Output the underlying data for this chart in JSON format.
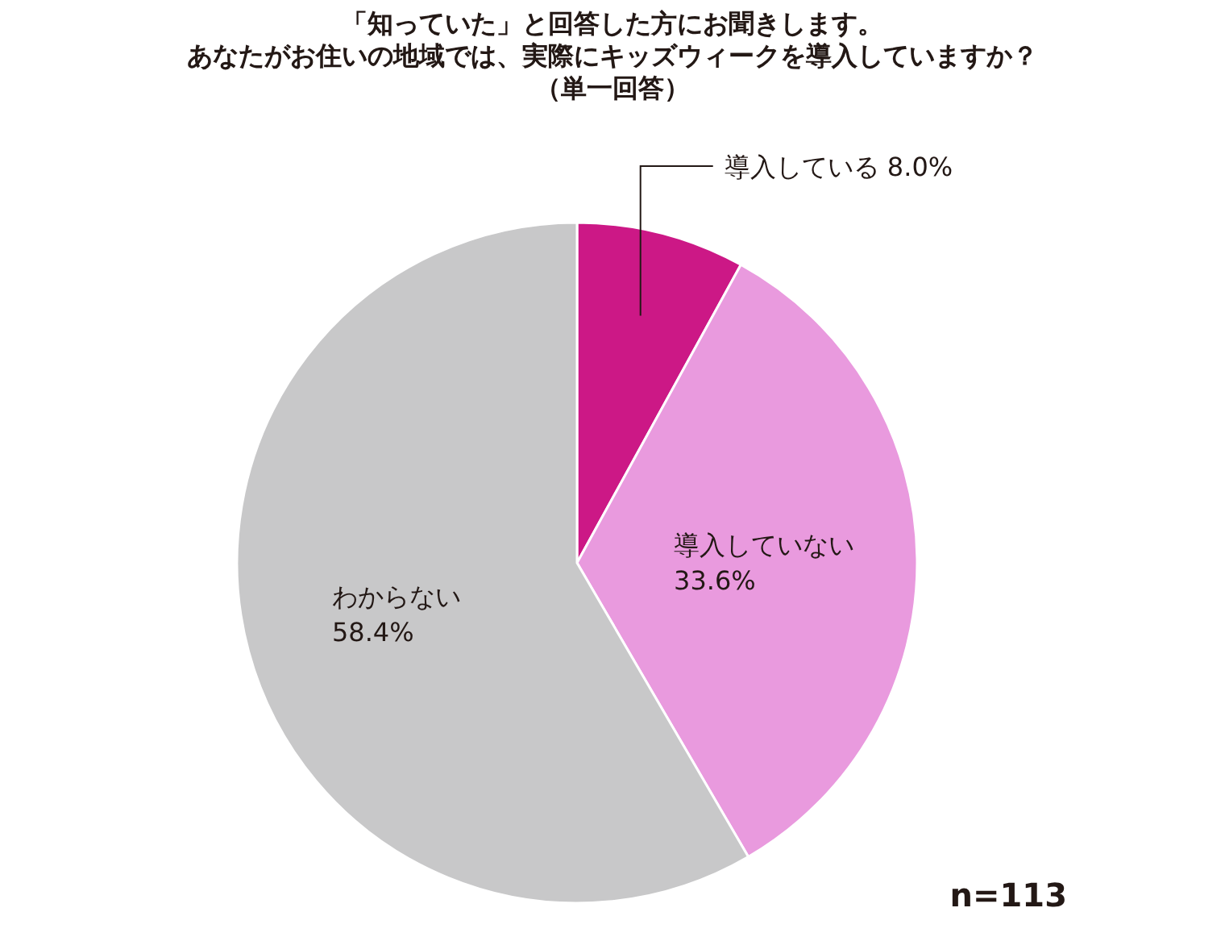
{
  "chart_data": {
    "type": "pie",
    "title": "「知っていた」と回答した方にお聞きします。",
    "subtitle": "あなたがお住いの地域では、実際にキッズウィークを導入していますか？",
    "categories": [
      "導入している",
      "導入していない",
      "わからない"
    ],
    "values": [
      8.0,
      33.6,
      58.4
    ],
    "value_labels": [
      "8.0%",
      "33.6%",
      "58.4%"
    ],
    "colors": [
      "#cc1886",
      "#e99ade",
      "#c8c8c9"
    ],
    "annotations": [
      "（単一回答）",
      "n=113"
    ]
  }
}
